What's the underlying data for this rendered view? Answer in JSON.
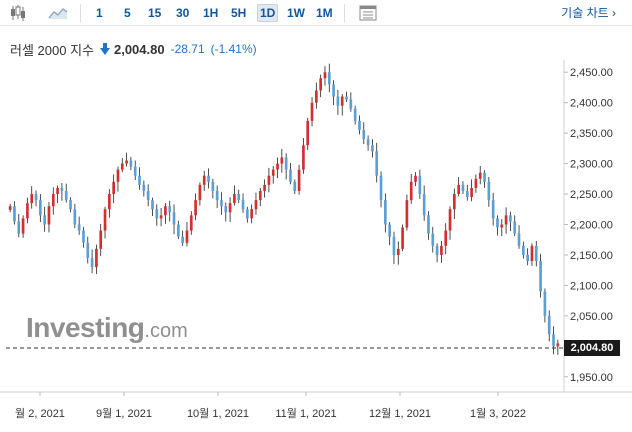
{
  "toolbar": {
    "timeframes": [
      "1",
      "5",
      "15",
      "30",
      "1H",
      "5H",
      "1D",
      "1W",
      "1M"
    ],
    "active_timeframe": "1D",
    "advanced_chart_label": "기술 차트 ›"
  },
  "quote": {
    "name": "러셀 2000 지수",
    "price": "2,004.80",
    "change": "-28.71",
    "change_pct": "(-1.41%)",
    "direction": "down",
    "down_color": "#1f73c8"
  },
  "watermark": {
    "brand": "Investing",
    "suffix": ".com"
  },
  "current_price_label": "2,004.80",
  "chart_data": {
    "type": "candlestick",
    "y_ticks": [
      "2,450.00",
      "2,400.00",
      "2,350.00",
      "2,300.00",
      "2,250.00",
      "2,200.00",
      "2,150.00",
      "2,100.00",
      "2,050.00",
      "1,950.00"
    ],
    "y_tick_values": [
      2450,
      2400,
      2350,
      2300,
      2250,
      2200,
      2150,
      2100,
      2050,
      1950
    ],
    "ylim": [
      1925,
      2470
    ],
    "x_ticks": [
      "월 2, 2021",
      "9월 1, 2021",
      "10월 1, 2021",
      "11월 1, 2021",
      "12월 1, 2021",
      "1월 3, 2022"
    ],
    "current_price": 2004.8,
    "up_color": "#d32f2f",
    "down_color": "#5b9fd6",
    "closes": [
      2230,
      2205,
      2185,
      2210,
      2235,
      2250,
      2240,
      2215,
      2200,
      2230,
      2250,
      2260,
      2255,
      2240,
      2225,
      2200,
      2190,
      2170,
      2145,
      2130,
      2160,
      2190,
      2225,
      2250,
      2270,
      2290,
      2300,
      2305,
      2295,
      2280,
      2265,
      2255,
      2240,
      2225,
      2210,
      2215,
      2230,
      2220,
      2200,
      2180,
      2170,
      2190,
      2215,
      2240,
      2265,
      2280,
      2270,
      2255,
      2240,
      2230,
      2220,
      2235,
      2250,
      2240,
      2225,
      2210,
      2225,
      2240,
      2255,
      2265,
      2280,
      2290,
      2300,
      2310,
      2290,
      2270,
      2255,
      2290,
      2330,
      2370,
      2400,
      2420,
      2440,
      2450,
      2430,
      2410,
      2395,
      2410,
      2405,
      2390,
      2370,
      2355,
      2340,
      2330,
      2320,
      2280,
      2240,
      2200,
      2180,
      2150,
      2160,
      2195,
      2240,
      2270,
      2280,
      2250,
      2215,
      2185,
      2165,
      2150,
      2165,
      2190,
      2225,
      2250,
      2265,
      2255,
      2245,
      2260,
      2275,
      2285,
      2270,
      2240,
      2210,
      2195,
      2200,
      2215,
      2205,
      2185,
      2165,
      2150,
      2140,
      2165,
      2140,
      2090,
      2050,
      2020,
      2000,
      2004.8
    ],
    "date_range": [
      "2021-08-02",
      "2022-01-31"
    ]
  }
}
